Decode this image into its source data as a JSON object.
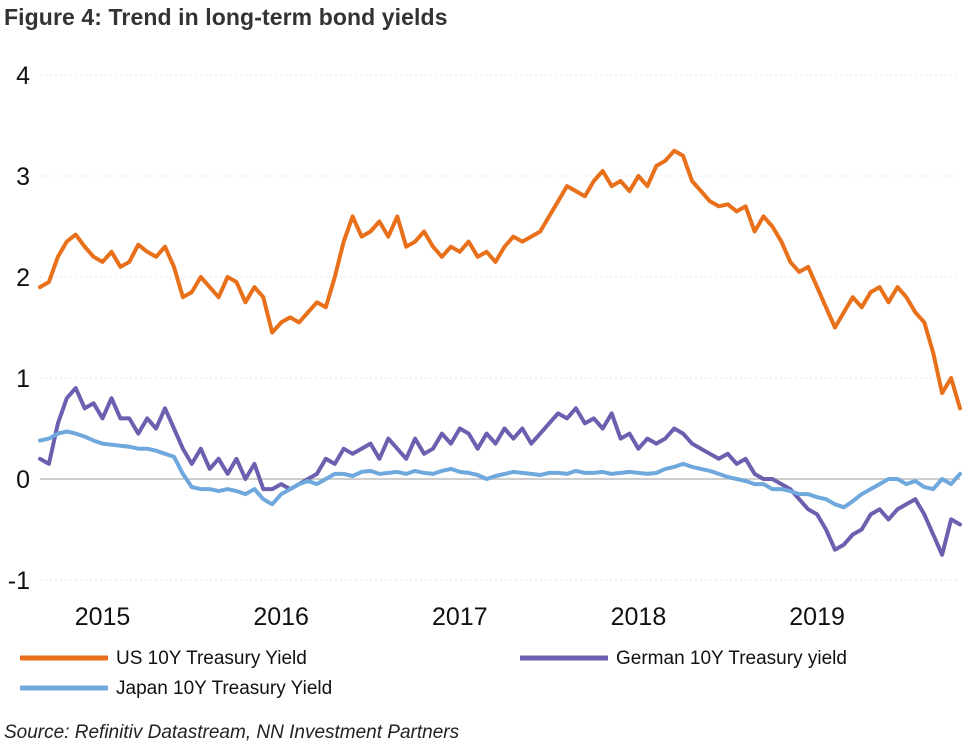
{
  "title": "Figure 4: Trend in long-term bond yields",
  "source": "Source: Refinitiv Datastream, NN Investment Partners",
  "chart_data": {
    "type": "line",
    "title": "Figure 4: Trend in long-term bond yields",
    "xlabel": "",
    "ylabel": "",
    "xlim": [
      2014.7,
      2019.85
    ],
    "ylim": [
      -1,
      4
    ],
    "yticks": [
      "-1",
      "0",
      "1",
      "2",
      "3",
      "4"
    ],
    "xticks": [
      {
        "label": "2015",
        "value": 2015.0
      },
      {
        "label": "2016",
        "value": 2016.0
      },
      {
        "label": "2017",
        "value": 2017.0
      },
      {
        "label": "2018",
        "value": 2018.0
      },
      {
        "label": "2019",
        "value": 2019.0
      }
    ],
    "grid": "horizontal dotted",
    "legend_position": "bottom",
    "series": [
      {
        "name": "US 10Y Treasury Yield",
        "color": "#E8701A",
        "x": [
          2014.7,
          2014.75,
          2014.8,
          2014.85,
          2014.9,
          2014.95,
          2015.0,
          2015.05,
          2015.1,
          2015.15,
          2015.2,
          2015.25,
          2015.3,
          2015.35,
          2015.4,
          2015.45,
          2015.5,
          2015.55,
          2015.6,
          2015.65,
          2015.7,
          2015.75,
          2015.8,
          2015.85,
          2015.9,
          2015.95,
          2016.0,
          2016.05,
          2016.1,
          2016.15,
          2016.2,
          2016.25,
          2016.3,
          2016.35,
          2016.4,
          2016.45,
          2016.5,
          2016.55,
          2016.6,
          2016.65,
          2016.7,
          2016.75,
          2016.8,
          2016.85,
          2016.9,
          2016.95,
          2017.0,
          2017.05,
          2017.1,
          2017.15,
          2017.2,
          2017.25,
          2017.3,
          2017.35,
          2017.4,
          2017.45,
          2017.5,
          2017.55,
          2017.6,
          2017.65,
          2017.7,
          2017.75,
          2017.8,
          2017.85,
          2017.9,
          2017.95,
          2018.0,
          2018.05,
          2018.1,
          2018.15,
          2018.2,
          2018.25,
          2018.3,
          2018.35,
          2018.4,
          2018.45,
          2018.5,
          2018.55,
          2018.6,
          2018.65,
          2018.7,
          2018.75,
          2018.8,
          2018.85,
          2018.9,
          2018.95,
          2019.0,
          2019.05,
          2019.1,
          2019.15,
          2019.2,
          2019.25,
          2019.3,
          2019.35,
          2019.4,
          2019.45,
          2019.5,
          2019.55,
          2019.6,
          2019.65,
          2019.7,
          2019.75,
          2019.8,
          2019.85
        ],
        "y": [
          1.9,
          1.95,
          2.2,
          2.35,
          2.42,
          2.3,
          2.2,
          2.15,
          2.25,
          2.1,
          2.15,
          2.32,
          2.25,
          2.2,
          2.3,
          2.1,
          1.8,
          1.85,
          2.0,
          1.9,
          1.8,
          2.0,
          1.95,
          1.75,
          1.9,
          1.8,
          1.45,
          1.55,
          1.6,
          1.55,
          1.65,
          1.75,
          1.7,
          2.0,
          2.35,
          2.6,
          2.4,
          2.45,
          2.55,
          2.4,
          2.6,
          2.3,
          2.35,
          2.45,
          2.3,
          2.2,
          2.3,
          2.25,
          2.35,
          2.2,
          2.25,
          2.15,
          2.3,
          2.4,
          2.35,
          2.4,
          2.45,
          2.6,
          2.75,
          2.9,
          2.85,
          2.8,
          2.95,
          3.05,
          2.9,
          2.95,
          2.85,
          3.0,
          2.9,
          3.1,
          3.15,
          3.25,
          3.2,
          2.95,
          2.85,
          2.75,
          2.7,
          2.72,
          2.65,
          2.7,
          2.45,
          2.6,
          2.5,
          2.35,
          2.15,
          2.05,
          2.1,
          1.9,
          1.7,
          1.5,
          1.65,
          1.8,
          1.7,
          1.85,
          1.9,
          1.75,
          1.9,
          1.8,
          1.65,
          1.55,
          1.25,
          0.85,
          1.0,
          0.7
        ]
      },
      {
        "name": "German 10Y Treasury yield",
        "color": "#6C5FB0",
        "x": [
          2014.7,
          2014.75,
          2014.8,
          2014.85,
          2014.9,
          2014.95,
          2015.0,
          2015.05,
          2015.1,
          2015.15,
          2015.2,
          2015.25,
          2015.3,
          2015.35,
          2015.4,
          2015.45,
          2015.5,
          2015.55,
          2015.6,
          2015.65,
          2015.7,
          2015.75,
          2015.8,
          2015.85,
          2015.9,
          2015.95,
          2016.0,
          2016.05,
          2016.1,
          2016.15,
          2016.2,
          2016.25,
          2016.3,
          2016.35,
          2016.4,
          2016.45,
          2016.5,
          2016.55,
          2016.6,
          2016.65,
          2016.7,
          2016.75,
          2016.8,
          2016.85,
          2016.9,
          2016.95,
          2017.0,
          2017.05,
          2017.1,
          2017.15,
          2017.2,
          2017.25,
          2017.3,
          2017.35,
          2017.4,
          2017.45,
          2017.5,
          2017.55,
          2017.6,
          2017.65,
          2017.7,
          2017.75,
          2017.8,
          2017.85,
          2017.9,
          2017.95,
          2018.0,
          2018.05,
          2018.1,
          2018.15,
          2018.2,
          2018.25,
          2018.3,
          2018.35,
          2018.4,
          2018.45,
          2018.5,
          2018.55,
          2018.6,
          2018.65,
          2018.7,
          2018.75,
          2018.8,
          2018.85,
          2018.9,
          2018.95,
          2019.0,
          2019.05,
          2019.1,
          2019.15,
          2019.2,
          2019.25,
          2019.3,
          2019.35,
          2019.4,
          2019.45,
          2019.5,
          2019.55,
          2019.6,
          2019.65,
          2019.7,
          2019.75,
          2019.8,
          2019.85
        ],
        "y": [
          0.2,
          0.15,
          0.55,
          0.8,
          0.9,
          0.7,
          0.75,
          0.6,
          0.8,
          0.6,
          0.6,
          0.45,
          0.6,
          0.5,
          0.7,
          0.5,
          0.3,
          0.15,
          0.3,
          0.1,
          0.2,
          0.05,
          0.2,
          0.0,
          0.15,
          -0.1,
          -0.1,
          -0.05,
          -0.1,
          -0.05,
          0.0,
          0.05,
          0.2,
          0.15,
          0.3,
          0.25,
          0.3,
          0.35,
          0.2,
          0.4,
          0.3,
          0.2,
          0.4,
          0.25,
          0.3,
          0.45,
          0.35,
          0.5,
          0.45,
          0.3,
          0.45,
          0.35,
          0.5,
          0.4,
          0.5,
          0.35,
          0.45,
          0.55,
          0.65,
          0.6,
          0.7,
          0.55,
          0.6,
          0.5,
          0.65,
          0.4,
          0.45,
          0.3,
          0.4,
          0.35,
          0.4,
          0.5,
          0.45,
          0.35,
          0.3,
          0.25,
          0.2,
          0.25,
          0.15,
          0.2,
          0.05,
          0.0,
          0.0,
          -0.05,
          -0.1,
          -0.2,
          -0.3,
          -0.35,
          -0.5,
          -0.7,
          -0.65,
          -0.55,
          -0.5,
          -0.35,
          -0.3,
          -0.4,
          -0.3,
          -0.25,
          -0.2,
          -0.35,
          -0.55,
          -0.75,
          -0.4,
          -0.45
        ]
      },
      {
        "name": "Japan 10Y Treasury Yield",
        "color": "#6FA8DC",
        "x": [
          2014.7,
          2014.75,
          2014.8,
          2014.85,
          2014.9,
          2014.95,
          2015.0,
          2015.05,
          2015.1,
          2015.15,
          2015.2,
          2015.25,
          2015.3,
          2015.35,
          2015.4,
          2015.45,
          2015.5,
          2015.55,
          2015.6,
          2015.65,
          2015.7,
          2015.75,
          2015.8,
          2015.85,
          2015.9,
          2015.95,
          2016.0,
          2016.05,
          2016.1,
          2016.15,
          2016.2,
          2016.25,
          2016.3,
          2016.35,
          2016.4,
          2016.45,
          2016.5,
          2016.55,
          2016.6,
          2016.65,
          2016.7,
          2016.75,
          2016.8,
          2016.85,
          2016.9,
          2016.95,
          2017.0,
          2017.05,
          2017.1,
          2017.15,
          2017.2,
          2017.25,
          2017.3,
          2017.35,
          2017.4,
          2017.45,
          2017.5,
          2017.55,
          2017.6,
          2017.65,
          2017.7,
          2017.75,
          2017.8,
          2017.85,
          2017.9,
          2017.95,
          2018.0,
          2018.05,
          2018.1,
          2018.15,
          2018.2,
          2018.25,
          2018.3,
          2018.35,
          2018.4,
          2018.45,
          2018.5,
          2018.55,
          2018.6,
          2018.65,
          2018.7,
          2018.75,
          2018.8,
          2018.85,
          2018.9,
          2018.95,
          2019.0,
          2019.05,
          2019.1,
          2019.15,
          2019.2,
          2019.25,
          2019.3,
          2019.35,
          2019.4,
          2019.45,
          2019.5,
          2019.55,
          2019.6,
          2019.65,
          2019.7,
          2019.75,
          2019.8,
          2019.85
        ],
        "y": [
          0.38,
          0.4,
          0.45,
          0.47,
          0.45,
          0.42,
          0.38,
          0.35,
          0.34,
          0.33,
          0.32,
          0.3,
          0.3,
          0.28,
          0.25,
          0.22,
          0.05,
          -0.08,
          -0.1,
          -0.1,
          -0.12,
          -0.1,
          -0.12,
          -0.15,
          -0.1,
          -0.2,
          -0.25,
          -0.15,
          -0.1,
          -0.05,
          -0.02,
          -0.05,
          0.0,
          0.05,
          0.05,
          0.03,
          0.07,
          0.08,
          0.05,
          0.06,
          0.07,
          0.05,
          0.08,
          0.06,
          0.05,
          0.08,
          0.1,
          0.07,
          0.06,
          0.04,
          0.0,
          0.03,
          0.05,
          0.07,
          0.06,
          0.05,
          0.04,
          0.06,
          0.06,
          0.05,
          0.08,
          0.06,
          0.06,
          0.07,
          0.05,
          0.06,
          0.07,
          0.06,
          0.05,
          0.06,
          0.1,
          0.12,
          0.15,
          0.12,
          0.1,
          0.08,
          0.05,
          0.02,
          0.0,
          -0.02,
          -0.05,
          -0.05,
          -0.1,
          -0.1,
          -0.12,
          -0.15,
          -0.15,
          -0.18,
          -0.2,
          -0.25,
          -0.28,
          -0.22,
          -0.15,
          -0.1,
          -0.05,
          0.0,
          0.0,
          -0.05,
          -0.02,
          -0.08,
          -0.1,
          0.0,
          -0.05,
          0.05
        ]
      }
    ],
    "legend": [
      {
        "label": "US 10Y Treasury Yield",
        "color": "#E8701A"
      },
      {
        "label": "German 10Y Treasury yield",
        "color": "#6C5FB0"
      },
      {
        "label": "Japan 10Y Treasury Yield",
        "color": "#6FA8DC"
      }
    ]
  }
}
